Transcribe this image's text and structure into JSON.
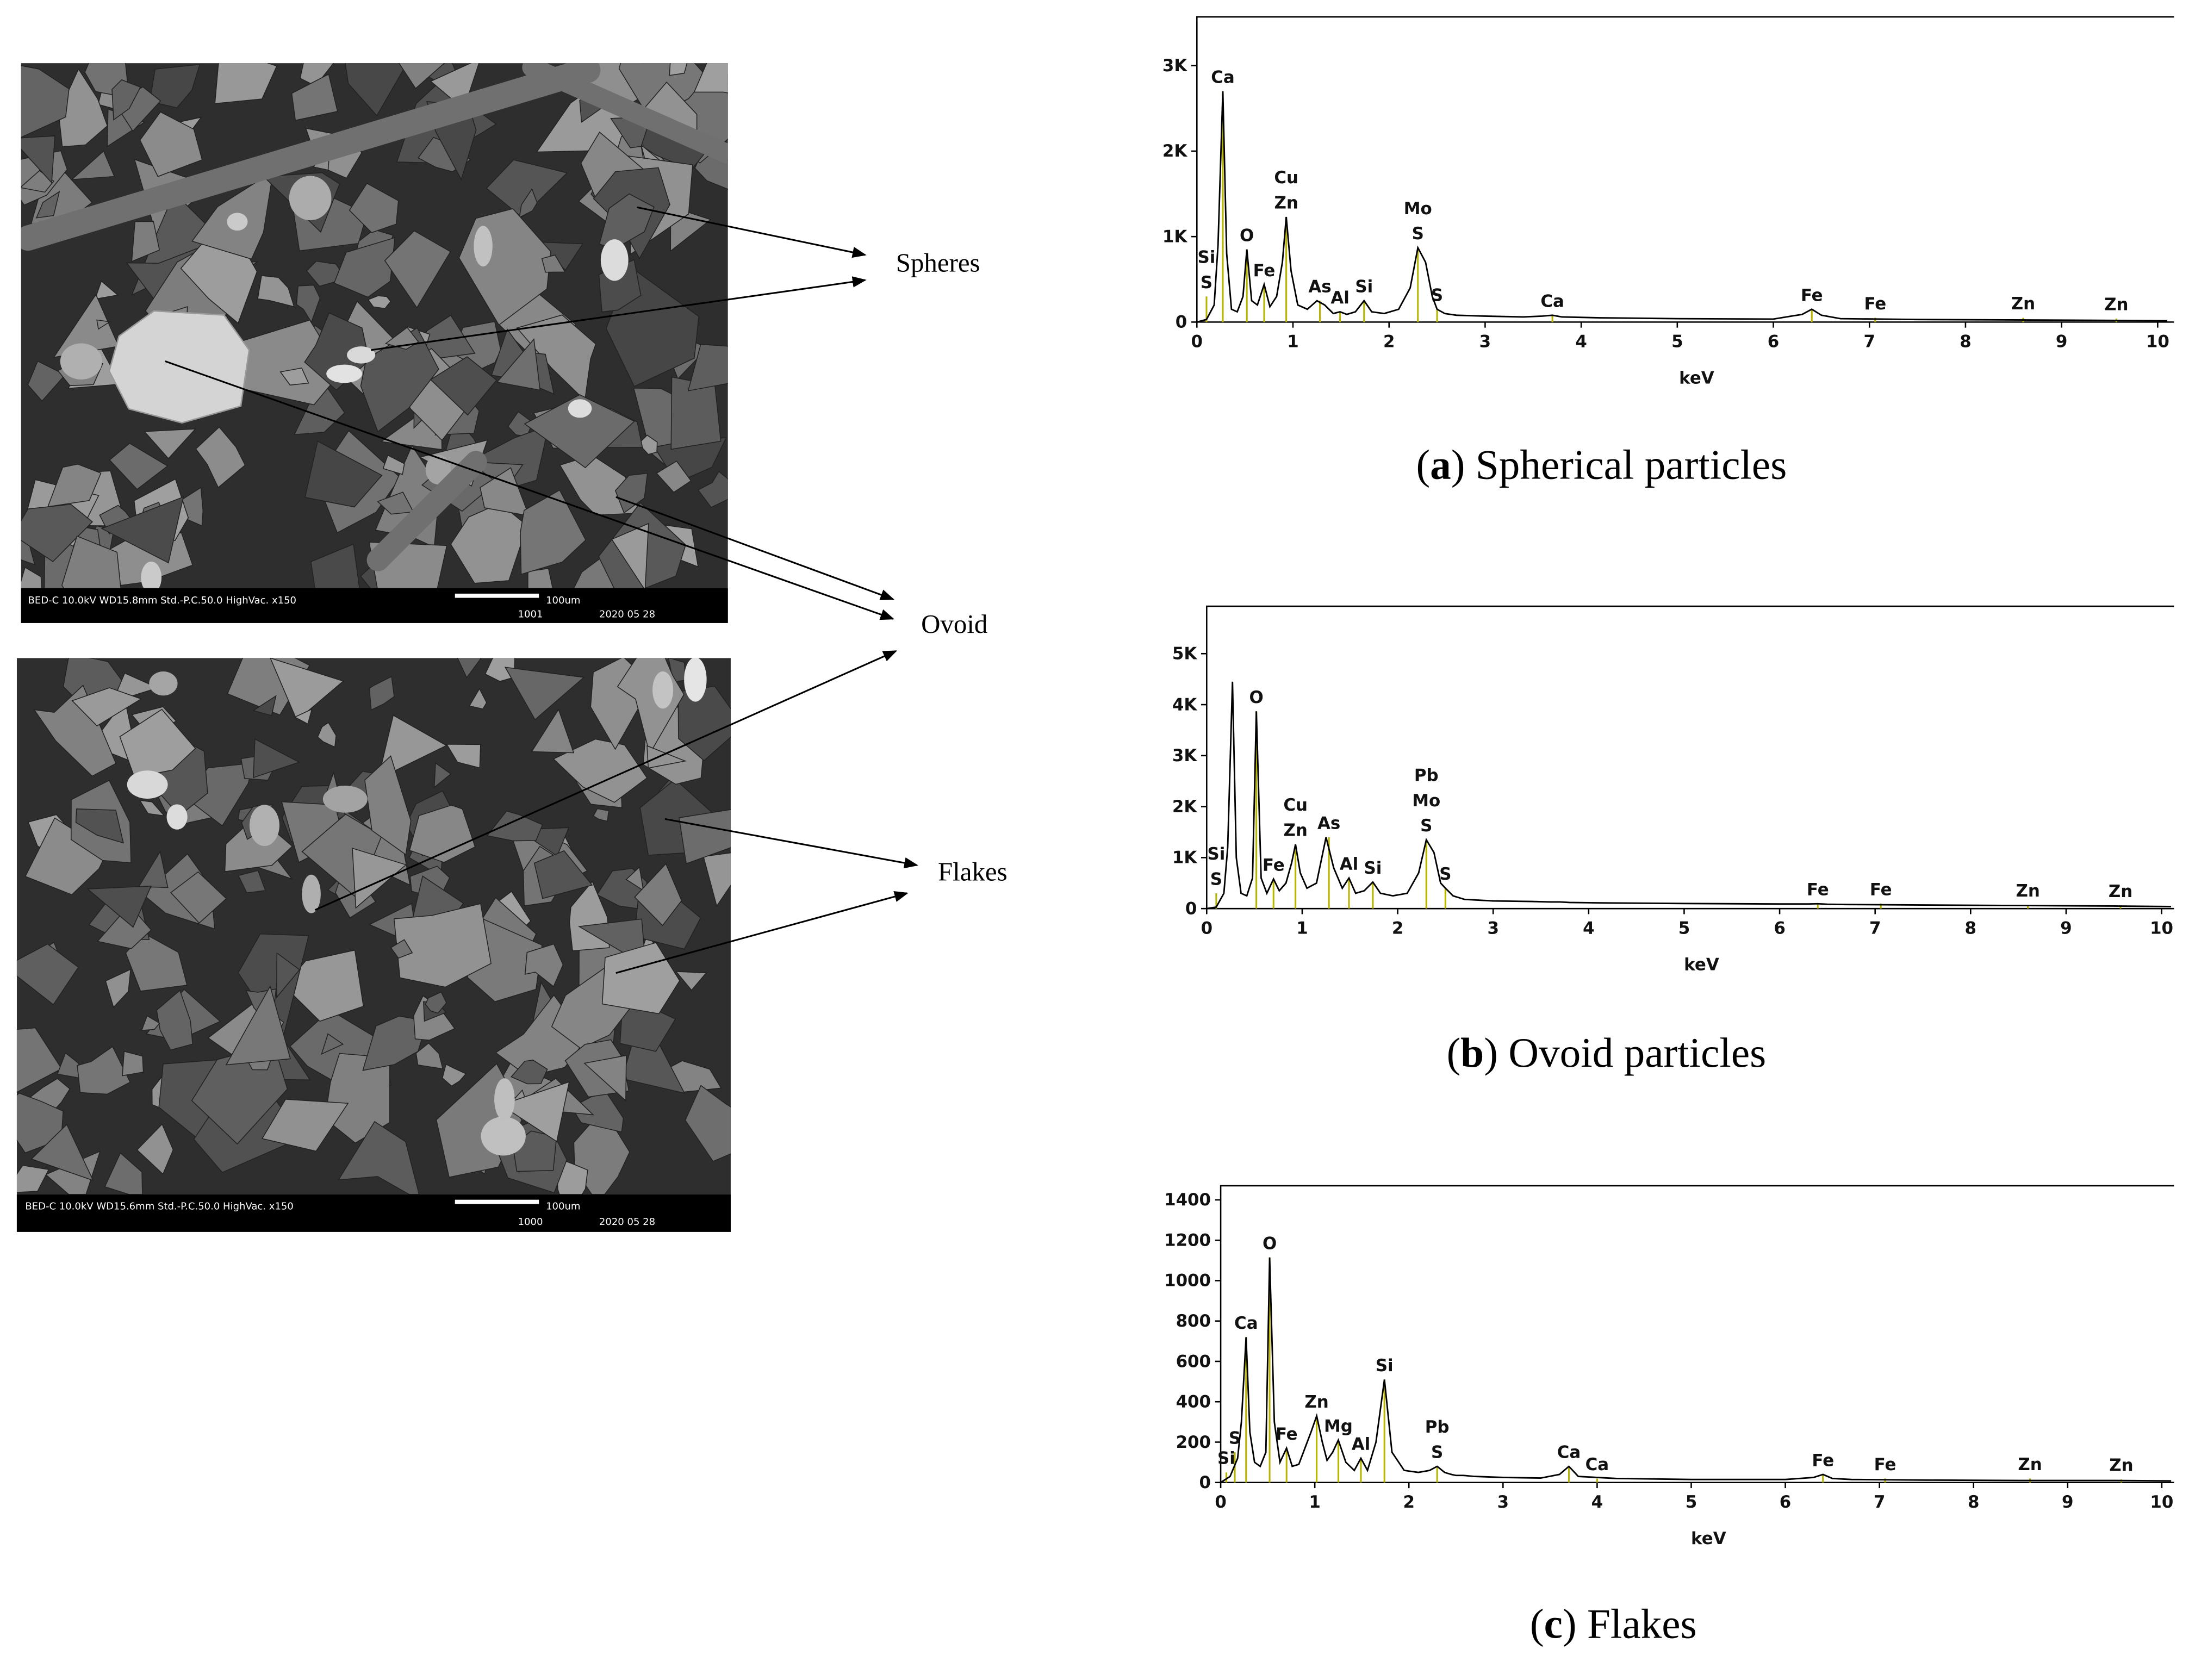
{
  "chart_data": [
    {
      "type": "line",
      "color": "#000000",
      "marker_color": "#b8b400",
      "xlabel": "keV",
      "xlim": [
        0,
        10.17
      ],
      "xticks": [
        0,
        1,
        2,
        3,
        4,
        5,
        6,
        7,
        8,
        9,
        10
      ],
      "ylim": [
        0,
        3570
      ],
      "yticks": [
        0,
        {
          "value": 1000,
          "label": "1K"
        },
        {
          "value": 2000,
          "label": "2K"
        },
        {
          "value": 3000,
          "label": "3K"
        }
      ],
      "x": [
        0,
        0.1,
        0.18,
        0.22,
        0.27,
        0.31,
        0.36,
        0.42,
        0.48,
        0.52,
        0.57,
        0.63,
        0.7,
        0.76,
        0.83,
        0.89,
        0.93,
        0.98,
        1.05,
        1.15,
        1.25,
        1.33,
        1.42,
        1.49,
        1.56,
        1.65,
        1.74,
        1.82,
        1.95,
        2.1,
        2.22,
        2.3,
        2.38,
        2.45,
        2.5,
        2.58,
        2.7,
        3.0,
        3.4,
        3.6,
        3.7,
        3.8,
        4.2,
        5,
        6,
        6.3,
        6.4,
        6.5,
        6.7,
        7.5,
        8.5,
        9.5,
        10.1
      ],
      "values": [
        0,
        30,
        200,
        900,
        2700,
        800,
        150,
        120,
        300,
        850,
        250,
        200,
        440,
        180,
        300,
        700,
        1230,
        600,
        200,
        150,
        250,
        200,
        100,
        120,
        90,
        120,
        250,
        120,
        100,
        150,
        400,
        870,
        700,
        300,
        150,
        100,
        80,
        70,
        60,
        70,
        80,
        60,
        50,
        40,
        35,
        90,
        150,
        80,
        40,
        30,
        25,
        20,
        15
      ],
      "annotations": [
        {
          "text": [
            "Si",
            "S"
          ],
          "x": 0.1,
          "y": 300
        },
        {
          "text": [
            "Ca"
          ],
          "x": 0.27,
          "y": 2700
        },
        {
          "text": [
            "O"
          ],
          "x": 0.52,
          "y": 850
        },
        {
          "text": [
            "Fe"
          ],
          "x": 0.7,
          "y": 440
        },
        {
          "text": [
            "Cu",
            "Zn"
          ],
          "x": 0.93,
          "y": 1230
        },
        {
          "text": [
            "As"
          ],
          "x": 1.28,
          "y": 250
        },
        {
          "text": [
            "Al"
          ],
          "x": 1.49,
          "y": 120
        },
        {
          "text": [
            "Si"
          ],
          "x": 1.74,
          "y": 250
        },
        {
          "text": [
            "Mo",
            "S"
          ],
          "x": 2.3,
          "y": 870
        },
        {
          "text": [
            "S"
          ],
          "x": 2.5,
          "y": 150
        },
        {
          "text": [
            "Ca"
          ],
          "x": 3.7,
          "y": 80
        },
        {
          "text": [
            "Fe"
          ],
          "x": 6.4,
          "y": 150
        },
        {
          "text": [
            "Fe"
          ],
          "x": 7.06,
          "y": 50
        },
        {
          "text": [
            "Zn"
          ],
          "x": 8.6,
          "y": 50
        },
        {
          "text": [
            "Zn"
          ],
          "x": 9.57,
          "y": 40
        }
      ],
      "caption": [
        "(",
        "a",
        ") Spherical particles"
      ]
    },
    {
      "type": "line",
      "color": "#000000",
      "marker_color": "#b8b400",
      "xlabel": "keV",
      "xlim": [
        0,
        10.13
      ],
      "xticks": [
        0,
        1,
        2,
        3,
        4,
        5,
        6,
        7,
        8,
        9,
        10
      ],
      "ylim": [
        0,
        5930
      ],
      "yticks": [
        0,
        {
          "value": 1000,
          "label": "1K"
        },
        {
          "value": 2000,
          "label": "2K"
        },
        {
          "value": 3000,
          "label": "3K"
        },
        {
          "value": 4000,
          "label": "4K"
        },
        {
          "value": 5000,
          "label": "5K"
        }
      ],
      "x": [
        0,
        0.1,
        0.18,
        0.22,
        0.27,
        0.31,
        0.36,
        0.42,
        0.48,
        0.52,
        0.57,
        0.63,
        0.7,
        0.76,
        0.83,
        0.89,
        0.93,
        0.98,
        1.05,
        1.15,
        1.25,
        1.33,
        1.42,
        1.49,
        1.56,
        1.65,
        1.74,
        1.82,
        1.95,
        2.1,
        2.22,
        2.3,
        2.38,
        2.45,
        2.5,
        2.58,
        2.7,
        3.0,
        3.4,
        3.6,
        3.7,
        3.8,
        4.2,
        5,
        6,
        6.3,
        6.4,
        6.5,
        6.7,
        7.5,
        8.5,
        9.5,
        10.1
      ],
      "values": [
        0,
        30,
        300,
        1200,
        4450,
        1000,
        300,
        250,
        600,
        3870,
        600,
        300,
        580,
        350,
        500,
        900,
        1260,
        700,
        400,
        500,
        1400,
        800,
        400,
        600,
        300,
        350,
        520,
        300,
        250,
        300,
        700,
        1350,
        1100,
        500,
        400,
        250,
        180,
        150,
        140,
        130,
        130,
        120,
        110,
        100,
        90,
        90,
        95,
        85,
        80,
        70,
        60,
        50,
        40
      ],
      "annotations": [
        {
          "text": [
            "Si",
            "S"
          ],
          "x": 0.1,
          "y": 300
        },
        {
          "text": [
            "O"
          ],
          "x": 0.52,
          "y": 3870
        },
        {
          "text": [
            "Fe"
          ],
          "x": 0.7,
          "y": 580
        },
        {
          "text": [
            "Cu",
            "Zn"
          ],
          "x": 0.93,
          "y": 1260
        },
        {
          "text": [
            "As"
          ],
          "x": 1.28,
          "y": 1400
        },
        {
          "text": [
            "Al"
          ],
          "x": 1.49,
          "y": 600
        },
        {
          "text": [
            "Si"
          ],
          "x": 1.74,
          "y": 520
        },
        {
          "text": [
            "Pb",
            "Mo",
            "S"
          ],
          "x": 2.3,
          "y": 1350
        },
        {
          "text": [
            "S"
          ],
          "x": 2.5,
          "y": 400
        },
        {
          "text": [
            "Fe"
          ],
          "x": 6.4,
          "y": 100
        },
        {
          "text": [
            "Fe"
          ],
          "x": 7.06,
          "y": 100
        },
        {
          "text": [
            "Zn"
          ],
          "x": 8.6,
          "y": 70
        },
        {
          "text": [
            "Zn"
          ],
          "x": 9.57,
          "y": 60
        }
      ],
      "caption": [
        "(",
        "b",
        ") Ovoid particles"
      ]
    },
    {
      "type": "line",
      "color": "#000000",
      "marker_color": "#b8b400",
      "xlabel": "keV",
      "xlim": [
        0,
        10.13
      ],
      "xticks": [
        0,
        1,
        2,
        3,
        4,
        5,
        6,
        7,
        8,
        9,
        10
      ],
      "ylim": [
        0,
        1470
      ],
      "yticks": [
        0,
        200,
        400,
        600,
        800,
        1000,
        1200,
        1400
      ],
      "x": [
        0,
        0.1,
        0.18,
        0.22,
        0.27,
        0.31,
        0.36,
        0.42,
        0.48,
        0.52,
        0.57,
        0.63,
        0.7,
        0.76,
        0.83,
        0.96,
        1.02,
        1.08,
        1.13,
        1.19,
        1.25,
        1.33,
        1.42,
        1.49,
        1.56,
        1.65,
        1.74,
        1.82,
        1.95,
        2.1,
        2.22,
        2.3,
        2.38,
        2.45,
        2.5,
        2.58,
        2.7,
        3.0,
        3.4,
        3.6,
        3.7,
        3.8,
        4.2,
        5,
        6,
        6.3,
        6.4,
        6.5,
        6.7,
        7.5,
        8.5,
        9.5,
        10.1
      ],
      "values": [
        0,
        30,
        120,
        300,
        720,
        250,
        100,
        80,
        150,
        1115,
        300,
        100,
        170,
        80,
        90,
        250,
        330,
        200,
        110,
        150,
        210,
        100,
        60,
        120,
        60,
        200,
        510,
        150,
        60,
        50,
        60,
        80,
        50,
        40,
        35,
        35,
        30,
        25,
        22,
        40,
        80,
        30,
        20,
        15,
        15,
        25,
        40,
        20,
        15,
        12,
        10,
        10,
        8
      ],
      "annotations": [
        {
          "text": [
            "Si"
          ],
          "x": 0.06,
          "y": 50
        },
        {
          "text": [
            "S"
          ],
          "x": 0.15,
          "y": 150
        },
        {
          "text": [
            "Ca"
          ],
          "x": 0.27,
          "y": 720
        },
        {
          "text": [
            "O"
          ],
          "x": 0.52,
          "y": 1115
        },
        {
          "text": [
            "Fe"
          ],
          "x": 0.7,
          "y": 170
        },
        {
          "text": [
            "Zn"
          ],
          "x": 1.02,
          "y": 330
        },
        {
          "text": [
            "Mg"
          ],
          "x": 1.25,
          "y": 210
        },
        {
          "text": [
            "Al"
          ],
          "x": 1.49,
          "y": 120
        },
        {
          "text": [
            "Si"
          ],
          "x": 1.74,
          "y": 510
        },
        {
          "text": [
            "Pb",
            "S"
          ],
          "x": 2.3,
          "y": 80
        },
        {
          "text": [
            "Ca"
          ],
          "x": 3.7,
          "y": 80
        },
        {
          "text": [
            "Ca"
          ],
          "x": 4.0,
          "y": 20
        },
        {
          "text": [
            "Fe"
          ],
          "x": 6.4,
          "y": 40
        },
        {
          "text": [
            "Fe"
          ],
          "x": 7.06,
          "y": 20
        },
        {
          "text": [
            "Zn"
          ],
          "x": 8.6,
          "y": 20
        },
        {
          "text": [
            "Zn"
          ],
          "x": 9.57,
          "y": 15
        }
      ],
      "caption": [
        "(",
        "c",
        ") Flakes"
      ]
    }
  ],
  "sem_images": [
    {
      "info": "BED-C  10.0kV  WD15.8mm  Std.-P.C.50.0  HighVac.   x150",
      "scale": "100um",
      "id": "1001",
      "date": "2020 05 28"
    },
    {
      "info": "BED-C  10.0kV  WD15.6mm  Std.-P.C.50.0  HighVac.   x150",
      "scale": "100um",
      "id": "1000",
      "date": "2020 05 28"
    }
  ],
  "particle_labels": [
    "Spheres",
    "Ovoid",
    "Flakes"
  ]
}
